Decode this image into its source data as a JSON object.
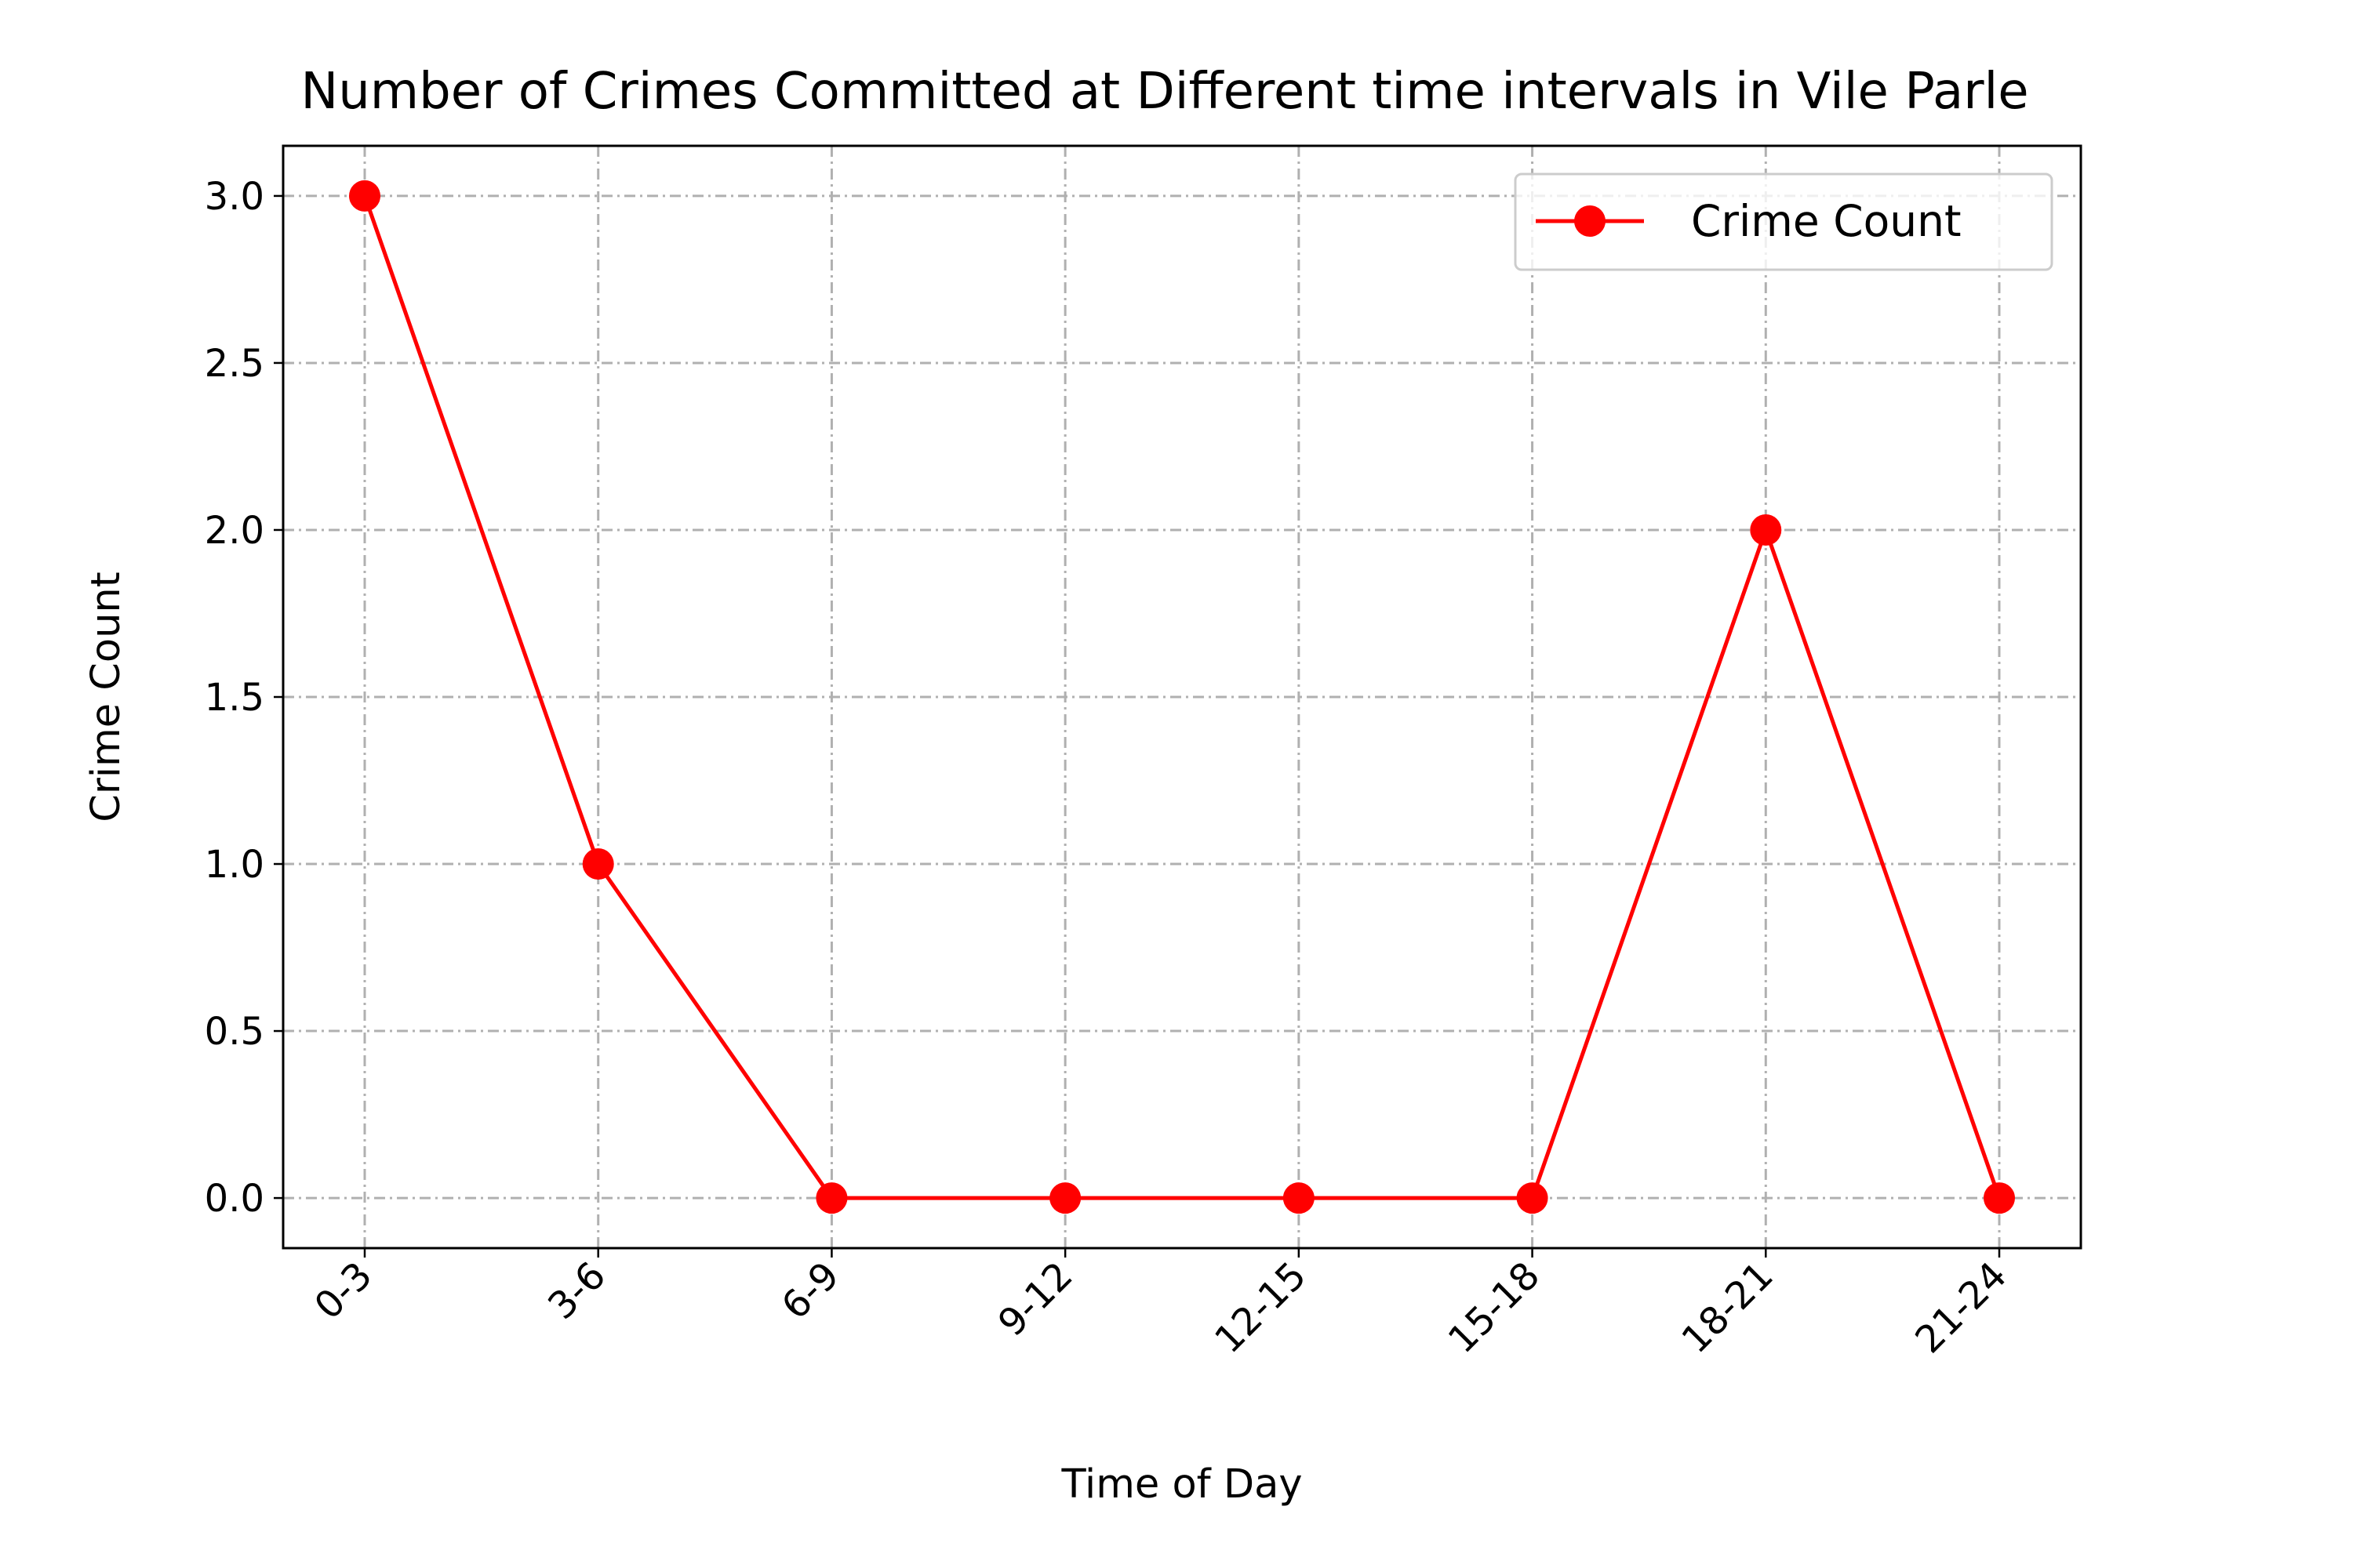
{
  "chart_data": {
    "type": "line",
    "title": "Number of Crimes Committed at Different time intervals in Vile Parle",
    "xlabel": "Time of Day",
    "ylabel": "Crime Count",
    "categories": [
      "0-3",
      "3-6",
      "6-9",
      "9-12",
      "12-15",
      "15-18",
      "18-21",
      "21-24"
    ],
    "series": [
      {
        "name": "Crime Count",
        "values": [
          3,
          1,
          0,
          0,
          0,
          0,
          2,
          0
        ],
        "color": "#ff0000",
        "marker": "circle"
      }
    ],
    "ylim": [
      -0.15,
      3.15
    ],
    "yticks": [
      0.0,
      0.5,
      1.0,
      1.5,
      2.0,
      2.5,
      3.0
    ],
    "ytick_labels": [
      "0.0",
      "0.5",
      "1.0",
      "1.5",
      "2.0",
      "2.5",
      "3.0"
    ],
    "grid": true,
    "legend": {
      "position": "top-right"
    },
    "xtick_rotation": 45
  }
}
